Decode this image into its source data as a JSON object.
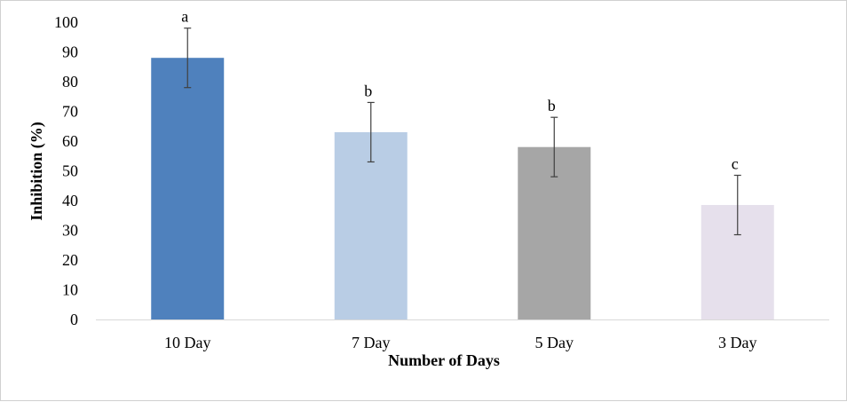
{
  "chart_data": {
    "type": "bar",
    "title": "",
    "xlabel": "Number of Days",
    "ylabel": "Inhibition  (%)",
    "categories": [
      "10 Day",
      "7 Day",
      "5 Day",
      "3 Day"
    ],
    "values": [
      88,
      63,
      58,
      38.5
    ],
    "error": [
      10,
      10,
      10,
      10
    ],
    "significance": [
      "a",
      "b",
      "b",
      "c"
    ],
    "colors": [
      "#4f81bd",
      "#b9cde5",
      "#a6a6a6",
      "#e6e0ec"
    ],
    "ylim": [
      0,
      100
    ],
    "yticks": [
      0,
      10,
      20,
      30,
      40,
      50,
      60,
      70,
      80,
      90,
      100
    ],
    "grid": false,
    "legend": "none"
  }
}
